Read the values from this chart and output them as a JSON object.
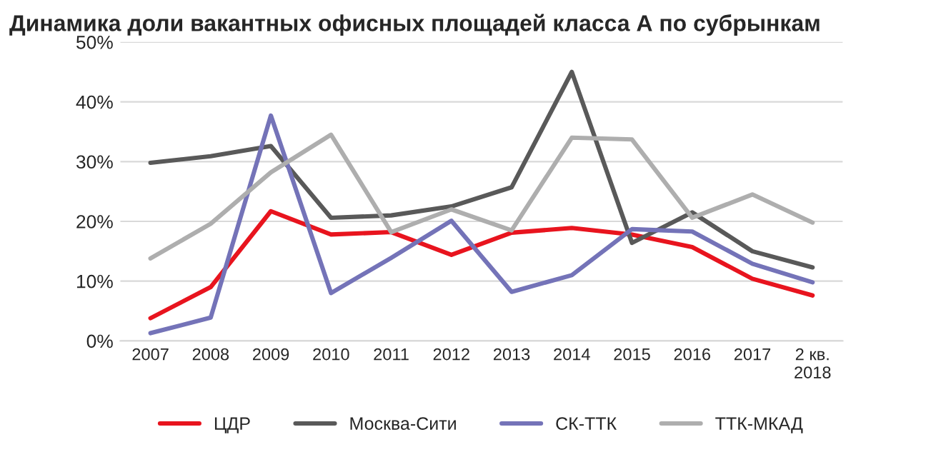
{
  "chart_data": {
    "type": "line",
    "title": "Динамика доли вакантных офисных площадей класса А по субрынкам",
    "categories": [
      "2007",
      "2008",
      "2009",
      "2010",
      "2011",
      "2012",
      "2013",
      "2014",
      "2015",
      "2016",
      "2017",
      "2 кв.\n2018"
    ],
    "series": [
      {
        "name": "ЦДР",
        "color": "#e8141e",
        "values": [
          3.8,
          9,
          21.7,
          17.8,
          18.2,
          14.4,
          18.1,
          18.9,
          17.8,
          15.7,
          10.4,
          7.6
        ]
      },
      {
        "name": "Москва-Сити",
        "color": "#595959",
        "values": [
          29.8,
          30.9,
          32.6,
          20.6,
          21,
          22.5,
          25.7,
          45,
          16.4,
          21.5,
          15,
          12.3
        ]
      },
      {
        "name": "СК-ТТК",
        "color": "#7473b8",
        "values": [
          1.3,
          3.9,
          37.7,
          8,
          13.9,
          20.1,
          8.2,
          11,
          18.7,
          18.3,
          12.9,
          9.8
        ]
      },
      {
        "name": "ТТК-МКАД",
        "color": "#aeaeae",
        "values": [
          13.8,
          19.6,
          28.2,
          34.5,
          18.2,
          22,
          18.5,
          34,
          33.7,
          20.6,
          24.5,
          19.8
        ]
      }
    ],
    "ylim": [
      0,
      50
    ],
    "yticks": [
      {
        "value": 0,
        "label": "0%"
      },
      {
        "value": 10,
        "label": "10%"
      },
      {
        "value": 20,
        "label": "20%"
      },
      {
        "value": 30,
        "label": "30%"
      },
      {
        "value": 40,
        "label": "40%"
      },
      {
        "value": 50,
        "label": "50%"
      }
    ],
    "grid": "y",
    "legend": "bottom",
    "marker": "none",
    "line_style": "solid"
  }
}
